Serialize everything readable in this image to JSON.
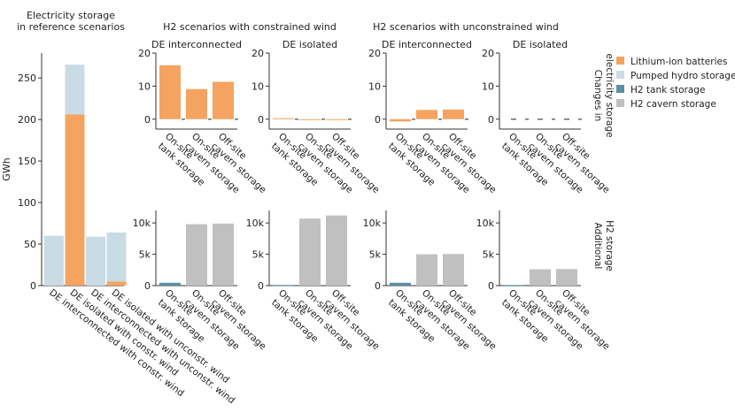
{
  "headers": {
    "left": [
      "Electricity storage",
      "in reference scenarios"
    ],
    "group_constrained": "H2 scenarios with constrained wind",
    "group_unconstrained": "H2 scenarios with unconstrained wind",
    "row_top": [
      "Changes in",
      "electricity storage"
    ],
    "row_bottom": [
      "Additional",
      "H2 storage"
    ]
  },
  "legend": [
    {
      "label": "Lithium-ion batteries",
      "color": "#f4a460"
    },
    {
      "label": "Pumped hydro storage",
      "color": "#c9dbe4"
    },
    {
      "label": "H2 tank storage",
      "color": "#5b8ea3"
    },
    {
      "label": "H2 cavern storage",
      "color": "#c0c0c0"
    }
  ],
  "chart_data": [
    {
      "id": "reference",
      "type": "bar",
      "stacked": true,
      "title": "Electricity storage in reference scenarios",
      "ylabel": "GWh",
      "ylim": [
        0,
        280
      ],
      "yticks": [
        0,
        50,
        100,
        150,
        200,
        250
      ],
      "ytick_labels": [
        "0",
        "50",
        "100",
        "150",
        "200",
        "250"
      ],
      "categories": [
        "DE interconnected with constr. wind",
        "DE isolated with constr. wind",
        "DE interconnected with unconstr. wind",
        "DE isolated with unconstr. wind"
      ],
      "series": [
        {
          "name": "Lithium-ion batteries",
          "color": "#f4a460",
          "values": [
            0,
            206,
            0,
            5
          ]
        },
        {
          "name": "Pumped hydro storage",
          "color": "#c9dbe4",
          "values": [
            60,
            60,
            59,
            59
          ]
        }
      ]
    },
    {
      "id": "elec_c_int",
      "type": "bar",
      "title": "DE interconnected",
      "ylim": [
        -3,
        20
      ],
      "yticks": [
        0,
        10,
        20
      ],
      "ytick_labels": [
        "0",
        "10",
        "20"
      ],
      "categories": [
        "On-site\ntank storage",
        "On-site\ncavern storage",
        "Off-site\ncavern storage"
      ],
      "series": [
        {
          "name": "Lithium-ion batteries",
          "color": "#f4a460",
          "values": [
            16.3,
            9.1,
            11.3
          ]
        },
        {
          "name": "Pumped hydro storage",
          "color": "#c9dbe4",
          "values": [
            0,
            0,
            0
          ]
        }
      ]
    },
    {
      "id": "elec_c_iso",
      "type": "bar",
      "title": "DE isolated",
      "ylim": [
        -3,
        20
      ],
      "yticks": [
        0,
        10,
        20
      ],
      "ytick_labels": [
        "0",
        "10",
        "20"
      ],
      "categories": [
        "On-site\ntank storage",
        "On-site\ncavern storage",
        "Off-site\ncavern storage"
      ],
      "series": [
        {
          "name": "Lithium-ion batteries",
          "color": "#f4a460",
          "values": [
            0.3,
            -0.1,
            -0.2
          ]
        },
        {
          "name": "Pumped hydro storage",
          "color": "#c9dbe4",
          "values": [
            0,
            0,
            0
          ]
        }
      ]
    },
    {
      "id": "elec_u_int",
      "type": "bar",
      "title": "DE interconnected",
      "ylim": [
        -3,
        20
      ],
      "yticks": [
        0,
        10,
        20
      ],
      "ytick_labels": [
        "0",
        "10",
        "20"
      ],
      "categories": [
        "On-site\ntank storage",
        "On-site\ncavern storage",
        "Off-site\ncavern storage"
      ],
      "series": [
        {
          "name": "Lithium-ion batteries",
          "color": "#f4a460",
          "values": [
            -0.7,
            2.8,
            2.9
          ]
        },
        {
          "name": "Pumped hydro storage",
          "color": "#c9dbe4",
          "values": [
            0,
            0,
            0
          ]
        }
      ]
    },
    {
      "id": "elec_u_iso",
      "type": "bar",
      "title": "DE isolated",
      "ylim": [
        -3,
        20
      ],
      "yticks": [
        0,
        10,
        20
      ],
      "ytick_labels": [
        "0",
        "10",
        "20"
      ],
      "categories": [
        "On-site\ntank storage",
        "On-site\ncavern storage",
        "Off-site\ncavern storage"
      ],
      "series": [
        {
          "name": "Lithium-ion batteries",
          "color": "#f4a460",
          "values": [
            0,
            0,
            0
          ]
        },
        {
          "name": "Pumped hydro storage",
          "color": "#c9dbe4",
          "values": [
            0,
            0,
            0
          ]
        }
      ]
    },
    {
      "id": "h2_c_int",
      "type": "bar",
      "ylim": [
        0,
        12000
      ],
      "yticks": [
        0,
        5000,
        10000
      ],
      "ytick_labels": [
        "0",
        "5k",
        "10k"
      ],
      "categories": [
        "On-site\ntank storage",
        "On-site\ncavern storage",
        "Off-site\ncavern storage"
      ],
      "series": [
        {
          "name": "H2 tank storage",
          "color": "#5b8ea3",
          "values": [
            450,
            0,
            0
          ]
        },
        {
          "name": "H2 cavern storage",
          "color": "#c0c0c0",
          "values": [
            0,
            9800,
            9900
          ]
        }
      ]
    },
    {
      "id": "h2_c_iso",
      "type": "bar",
      "ylim": [
        0,
        12000
      ],
      "yticks": [
        0,
        5000,
        10000
      ],
      "ytick_labels": [
        "0",
        "5k",
        "10k"
      ],
      "categories": [
        "On-site\ntank storage",
        "On-site\ncavern storage",
        "Off-site\ncavern storage"
      ],
      "series": [
        {
          "name": "H2 tank storage",
          "color": "#5b8ea3",
          "values": [
            100,
            0,
            0
          ]
        },
        {
          "name": "H2 cavern storage",
          "color": "#c0c0c0",
          "values": [
            0,
            10700,
            11200
          ]
        }
      ]
    },
    {
      "id": "h2_u_int",
      "type": "bar",
      "ylim": [
        0,
        12000
      ],
      "yticks": [
        0,
        5000,
        10000
      ],
      "ytick_labels": [
        "0",
        "5k",
        "10k"
      ],
      "categories": [
        "On-site\ntank storage",
        "On-site\ncavern storage",
        "Off-site\ncavern storage"
      ],
      "series": [
        {
          "name": "H2 tank storage",
          "color": "#5b8ea3",
          "values": [
            450,
            0,
            0
          ]
        },
        {
          "name": "H2 cavern storage",
          "color": "#c0c0c0",
          "values": [
            0,
            5000,
            5050
          ]
        }
      ]
    },
    {
      "id": "h2_u_iso",
      "type": "bar",
      "ylim": [
        0,
        12000
      ],
      "yticks": [
        0,
        5000,
        10000
      ],
      "ytick_labels": [
        "0",
        "5k",
        "10k"
      ],
      "categories": [
        "On-site\ntank storage",
        "On-site\ncavern storage",
        "Off-site\ncavern storage"
      ],
      "series": [
        {
          "name": "H2 tank storage",
          "color": "#5b8ea3",
          "values": [
            40,
            0,
            0
          ]
        },
        {
          "name": "H2 cavern storage",
          "color": "#c0c0c0",
          "values": [
            0,
            2600,
            2650
          ]
        }
      ]
    }
  ]
}
